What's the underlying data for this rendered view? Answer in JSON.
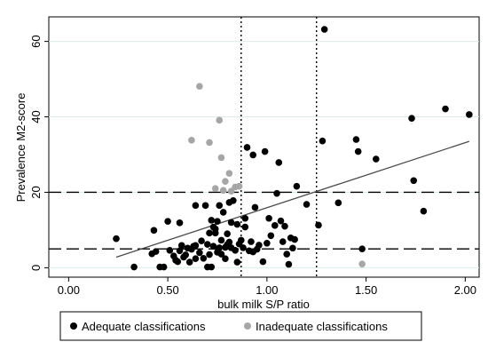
{
  "chart_data": {
    "type": "scatter",
    "xlabel": "bulk milk S/P ratio",
    "ylabel": "Prevalence M2-score",
    "xlim": [
      -0.1,
      2.07
    ],
    "ylim": [
      -2.5,
      66.5
    ],
    "x_ticks": [
      "0.00",
      "0.50",
      "1.00",
      "1.50",
      "2.00"
    ],
    "x_tick_values": [
      0,
      0.5,
      1,
      1.5,
      2
    ],
    "y_ticks": [
      "0",
      "20",
      "40",
      "60"
    ],
    "y_tick_values": [
      0,
      20,
      40,
      60
    ],
    "grid": "horizontal",
    "reference_lines": {
      "horizontal_dashed": [
        5,
        20
      ],
      "vertical_dotted": [
        0.87,
        1.25
      ]
    },
    "trend_line": {
      "x": [
        0.24,
        2.02
      ],
      "y": [
        2.8,
        33.5
      ]
    },
    "legend_position": "bottom",
    "colors": {
      "adequate": "#000000",
      "inadequate": "#a6a6a6",
      "grid": "#dcecec",
      "trend": "#4a4a4a"
    },
    "series": [
      {
        "name": "Adequate classifications",
        "points": [
          [
            0.24,
            7.7
          ],
          [
            0.33,
            0.2
          ],
          [
            0.42,
            3.7
          ],
          [
            0.43,
            9.9
          ],
          [
            0.44,
            4.3
          ],
          [
            0.46,
            0.2
          ],
          [
            0.48,
            0.2
          ],
          [
            0.5,
            12.3
          ],
          [
            0.51,
            4.6
          ],
          [
            0.53,
            3.1
          ],
          [
            0.54,
            2.0
          ],
          [
            0.55,
            1.6
          ],
          [
            0.56,
            11.9
          ],
          [
            0.56,
            4.5
          ],
          [
            0.57,
            5.9
          ],
          [
            0.58,
            2.8
          ],
          [
            0.59,
            3.4
          ],
          [
            0.6,
            5.2
          ],
          [
            0.61,
            1.5
          ],
          [
            0.62,
            4.9
          ],
          [
            0.63,
            5.7
          ],
          [
            0.64,
            2.4
          ],
          [
            0.64,
            5.9
          ],
          [
            0.64,
            16.5
          ],
          [
            0.66,
            4.0
          ],
          [
            0.67,
            7.1
          ],
          [
            0.68,
            2.5
          ],
          [
            0.69,
            16.5
          ],
          [
            0.7,
            0.2
          ],
          [
            0.7,
            6.2
          ],
          [
            0.71,
            3.5
          ],
          [
            0.71,
            9.2
          ],
          [
            0.72,
            12.6
          ],
          [
            0.72,
            0.2
          ],
          [
            0.73,
            5.7
          ],
          [
            0.73,
            10.8
          ],
          [
            0.74,
            9.2
          ],
          [
            0.74,
            10.3
          ],
          [
            0.75,
            4.1
          ],
          [
            0.75,
            12.3
          ],
          [
            0.76,
            5.3
          ],
          [
            0.76,
            16.5
          ],
          [
            0.77,
            3.6
          ],
          [
            0.77,
            7.3
          ],
          [
            0.78,
            14.7
          ],
          [
            0.79,
            2.4
          ],
          [
            0.79,
            5.4
          ],
          [
            0.8,
            9.0
          ],
          [
            0.8,
            6.1
          ],
          [
            0.81,
            6.8
          ],
          [
            0.81,
            17.3
          ],
          [
            0.82,
            5.3
          ],
          [
            0.82,
            12.0
          ],
          [
            0.83,
            17.8
          ],
          [
            0.84,
            4.6
          ],
          [
            0.85,
            1.5
          ],
          [
            0.85,
            11.5
          ],
          [
            0.86,
            6.3
          ],
          [
            0.87,
            7.3
          ],
          [
            0.88,
            5.3
          ],
          [
            0.89,
            10.8
          ],
          [
            0.89,
            13.1
          ],
          [
            0.9,
            31.9
          ],
          [
            0.91,
            4.5
          ],
          [
            0.92,
            6.9
          ],
          [
            0.93,
            4.2
          ],
          [
            0.93,
            29.9
          ],
          [
            0.94,
            16.0
          ],
          [
            0.95,
            4.9
          ],
          [
            0.96,
            6.0
          ],
          [
            0.98,
            1.6
          ],
          [
            0.99,
            30.8
          ],
          [
            1.0,
            6.5
          ],
          [
            1.01,
            13.1
          ],
          [
            1.02,
            8.5
          ],
          [
            1.04,
            11.2
          ],
          [
            1.05,
            19.7
          ],
          [
            1.06,
            27.9
          ],
          [
            1.07,
            12.4
          ],
          [
            1.08,
            6.9
          ],
          [
            1.09,
            11.0
          ],
          [
            1.1,
            3.6
          ],
          [
            1.11,
            0.9
          ],
          [
            1.12,
            7.9
          ],
          [
            1.13,
            5.2
          ],
          [
            1.14,
            7.5
          ],
          [
            1.15,
            21.6
          ],
          [
            1.2,
            16.8
          ],
          [
            1.26,
            11.3
          ],
          [
            1.28,
            33.6
          ],
          [
            1.29,
            63.2
          ],
          [
            1.36,
            17.2
          ],
          [
            1.45,
            34.0
          ],
          [
            1.46,
            30.8
          ],
          [
            1.48,
            5.0
          ],
          [
            1.55,
            28.8
          ],
          [
            1.73,
            39.6
          ],
          [
            1.74,
            23.1
          ],
          [
            1.79,
            15.0
          ],
          [
            1.9,
            42.1
          ],
          [
            2.02,
            40.6
          ]
        ]
      },
      {
        "name": "Inadequate classifications",
        "points": [
          [
            0.62,
            33.8
          ],
          [
            0.66,
            48.1
          ],
          [
            0.71,
            33.2
          ],
          [
            0.74,
            21.0
          ],
          [
            0.76,
            39.1
          ],
          [
            0.77,
            29.2
          ],
          [
            0.78,
            20.5
          ],
          [
            0.79,
            22.9
          ],
          [
            0.81,
            25.0
          ],
          [
            0.82,
            20.3
          ],
          [
            0.84,
            21.4
          ],
          [
            0.86,
            21.6
          ],
          [
            1.48,
            1.0
          ]
        ]
      }
    ]
  }
}
